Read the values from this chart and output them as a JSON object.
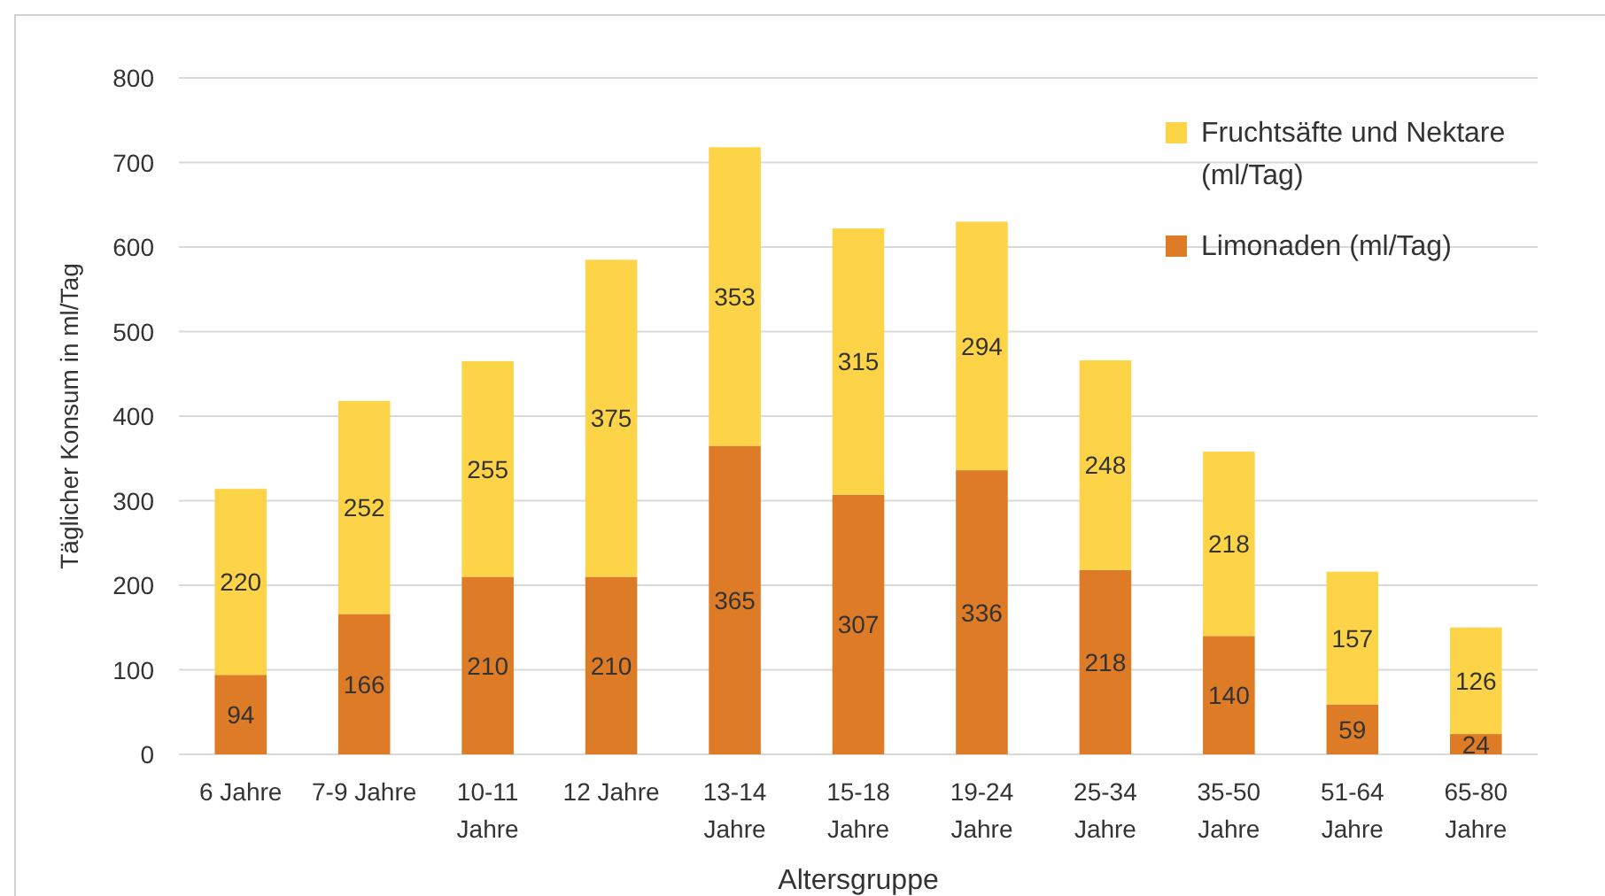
{
  "chart_data": {
    "type": "bar",
    "stacked": true,
    "xlabel": "Altersgruppe",
    "ylabel": "Täglicher Konsum in ml/Tag",
    "categories": [
      "6 Jahre",
      "7-9 Jahre",
      "10-11 Jahre",
      "12 Jahre",
      "13-14 Jahre",
      "15-18 Jahre",
      "19-24 Jahre",
      "25-34 Jahre",
      "35-50 Jahre",
      "51-64 Jahre",
      "65-80 Jahre"
    ],
    "series": [
      {
        "name": "Limonaden (ml/Tag)",
        "color": "#de7b26",
        "values": [
          94,
          166,
          210,
          210,
          365,
          307,
          336,
          218,
          140,
          59,
          24
        ]
      },
      {
        "name": "Fruchtsäfte und Nektare (ml/Tag)",
        "color": "#fdd447",
        "values": [
          220,
          252,
          255,
          375,
          353,
          315,
          294,
          248,
          218,
          157,
          126
        ]
      }
    ],
    "ylim": [
      0,
      800
    ],
    "yticks": [
      0,
      100,
      200,
      300,
      400,
      500,
      600,
      700,
      800
    ],
    "grid": "y",
    "legend": "top right",
    "data_labels": true
  }
}
